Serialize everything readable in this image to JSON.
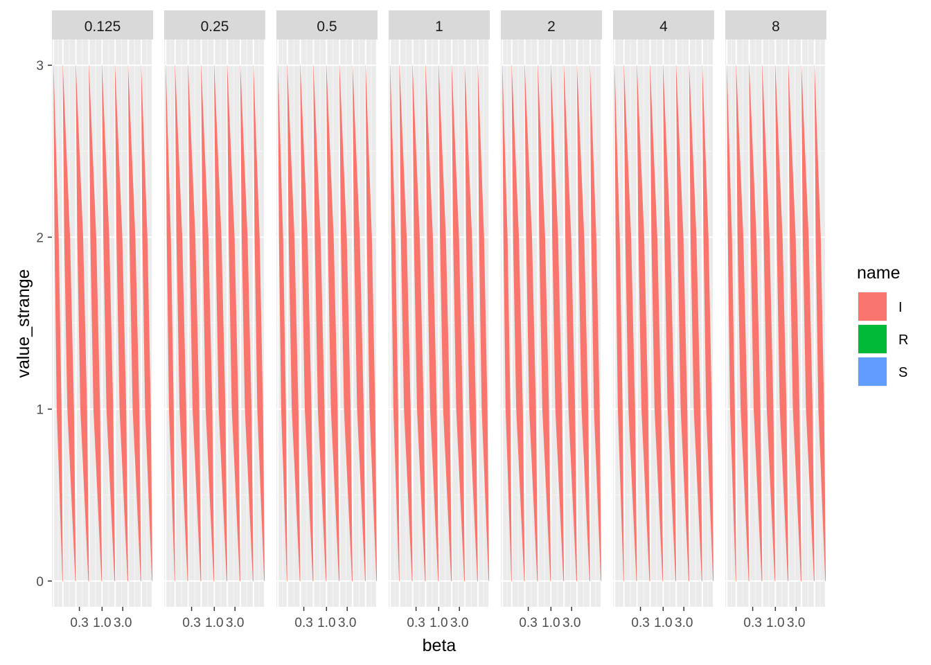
{
  "chart_data": {
    "type": "area",
    "xlabel": "beta",
    "ylabel": "value_strange",
    "x_scale": "log10",
    "x_tick_labels": [
      "0.3",
      "1.0",
      "3.0"
    ],
    "x_ticks": [
      0.3,
      1.0,
      3.0
    ],
    "xlim": [
      0.07,
      15
    ],
    "ylim": [
      -0.15,
      3.15
    ],
    "y_ticks": [
      0,
      1,
      2,
      3
    ],
    "y_tick_labels": [
      "0",
      "1",
      "2",
      "3"
    ],
    "grid": true,
    "legend": {
      "title": "name",
      "position": "right",
      "entries": [
        {
          "label": "I",
          "color": "#F8766D"
        },
        {
          "label": "R",
          "color": "#00BA38"
        },
        {
          "label": "S",
          "color": "#619CFF"
        }
      ]
    },
    "facets": [
      "0.125",
      "0.25",
      "0.5",
      "1",
      "2",
      "4",
      "8"
    ],
    "series_x": [
      0.0762,
      0.125,
      0.25,
      0.5,
      1.0,
      2.0,
      4.0,
      8.0,
      14.5
    ],
    "series": [
      {
        "name": "I",
        "color": "#F8766D",
        "bands_x": [
          [
            0.0762,
            0.125
          ],
          [
            0.125,
            0.25
          ],
          [
            0.25,
            0.5
          ],
          [
            0.5,
            1.0
          ],
          [
            1.0,
            2.0
          ],
          [
            2.0,
            4.0
          ],
          [
            4.0,
            8.0
          ],
          [
            8.0,
            14.5
          ]
        ]
      },
      {
        "name": "R",
        "color": "#00BA38",
        "values": []
      },
      {
        "name": "S",
        "color": "#619CFF",
        "values": []
      }
    ]
  }
}
